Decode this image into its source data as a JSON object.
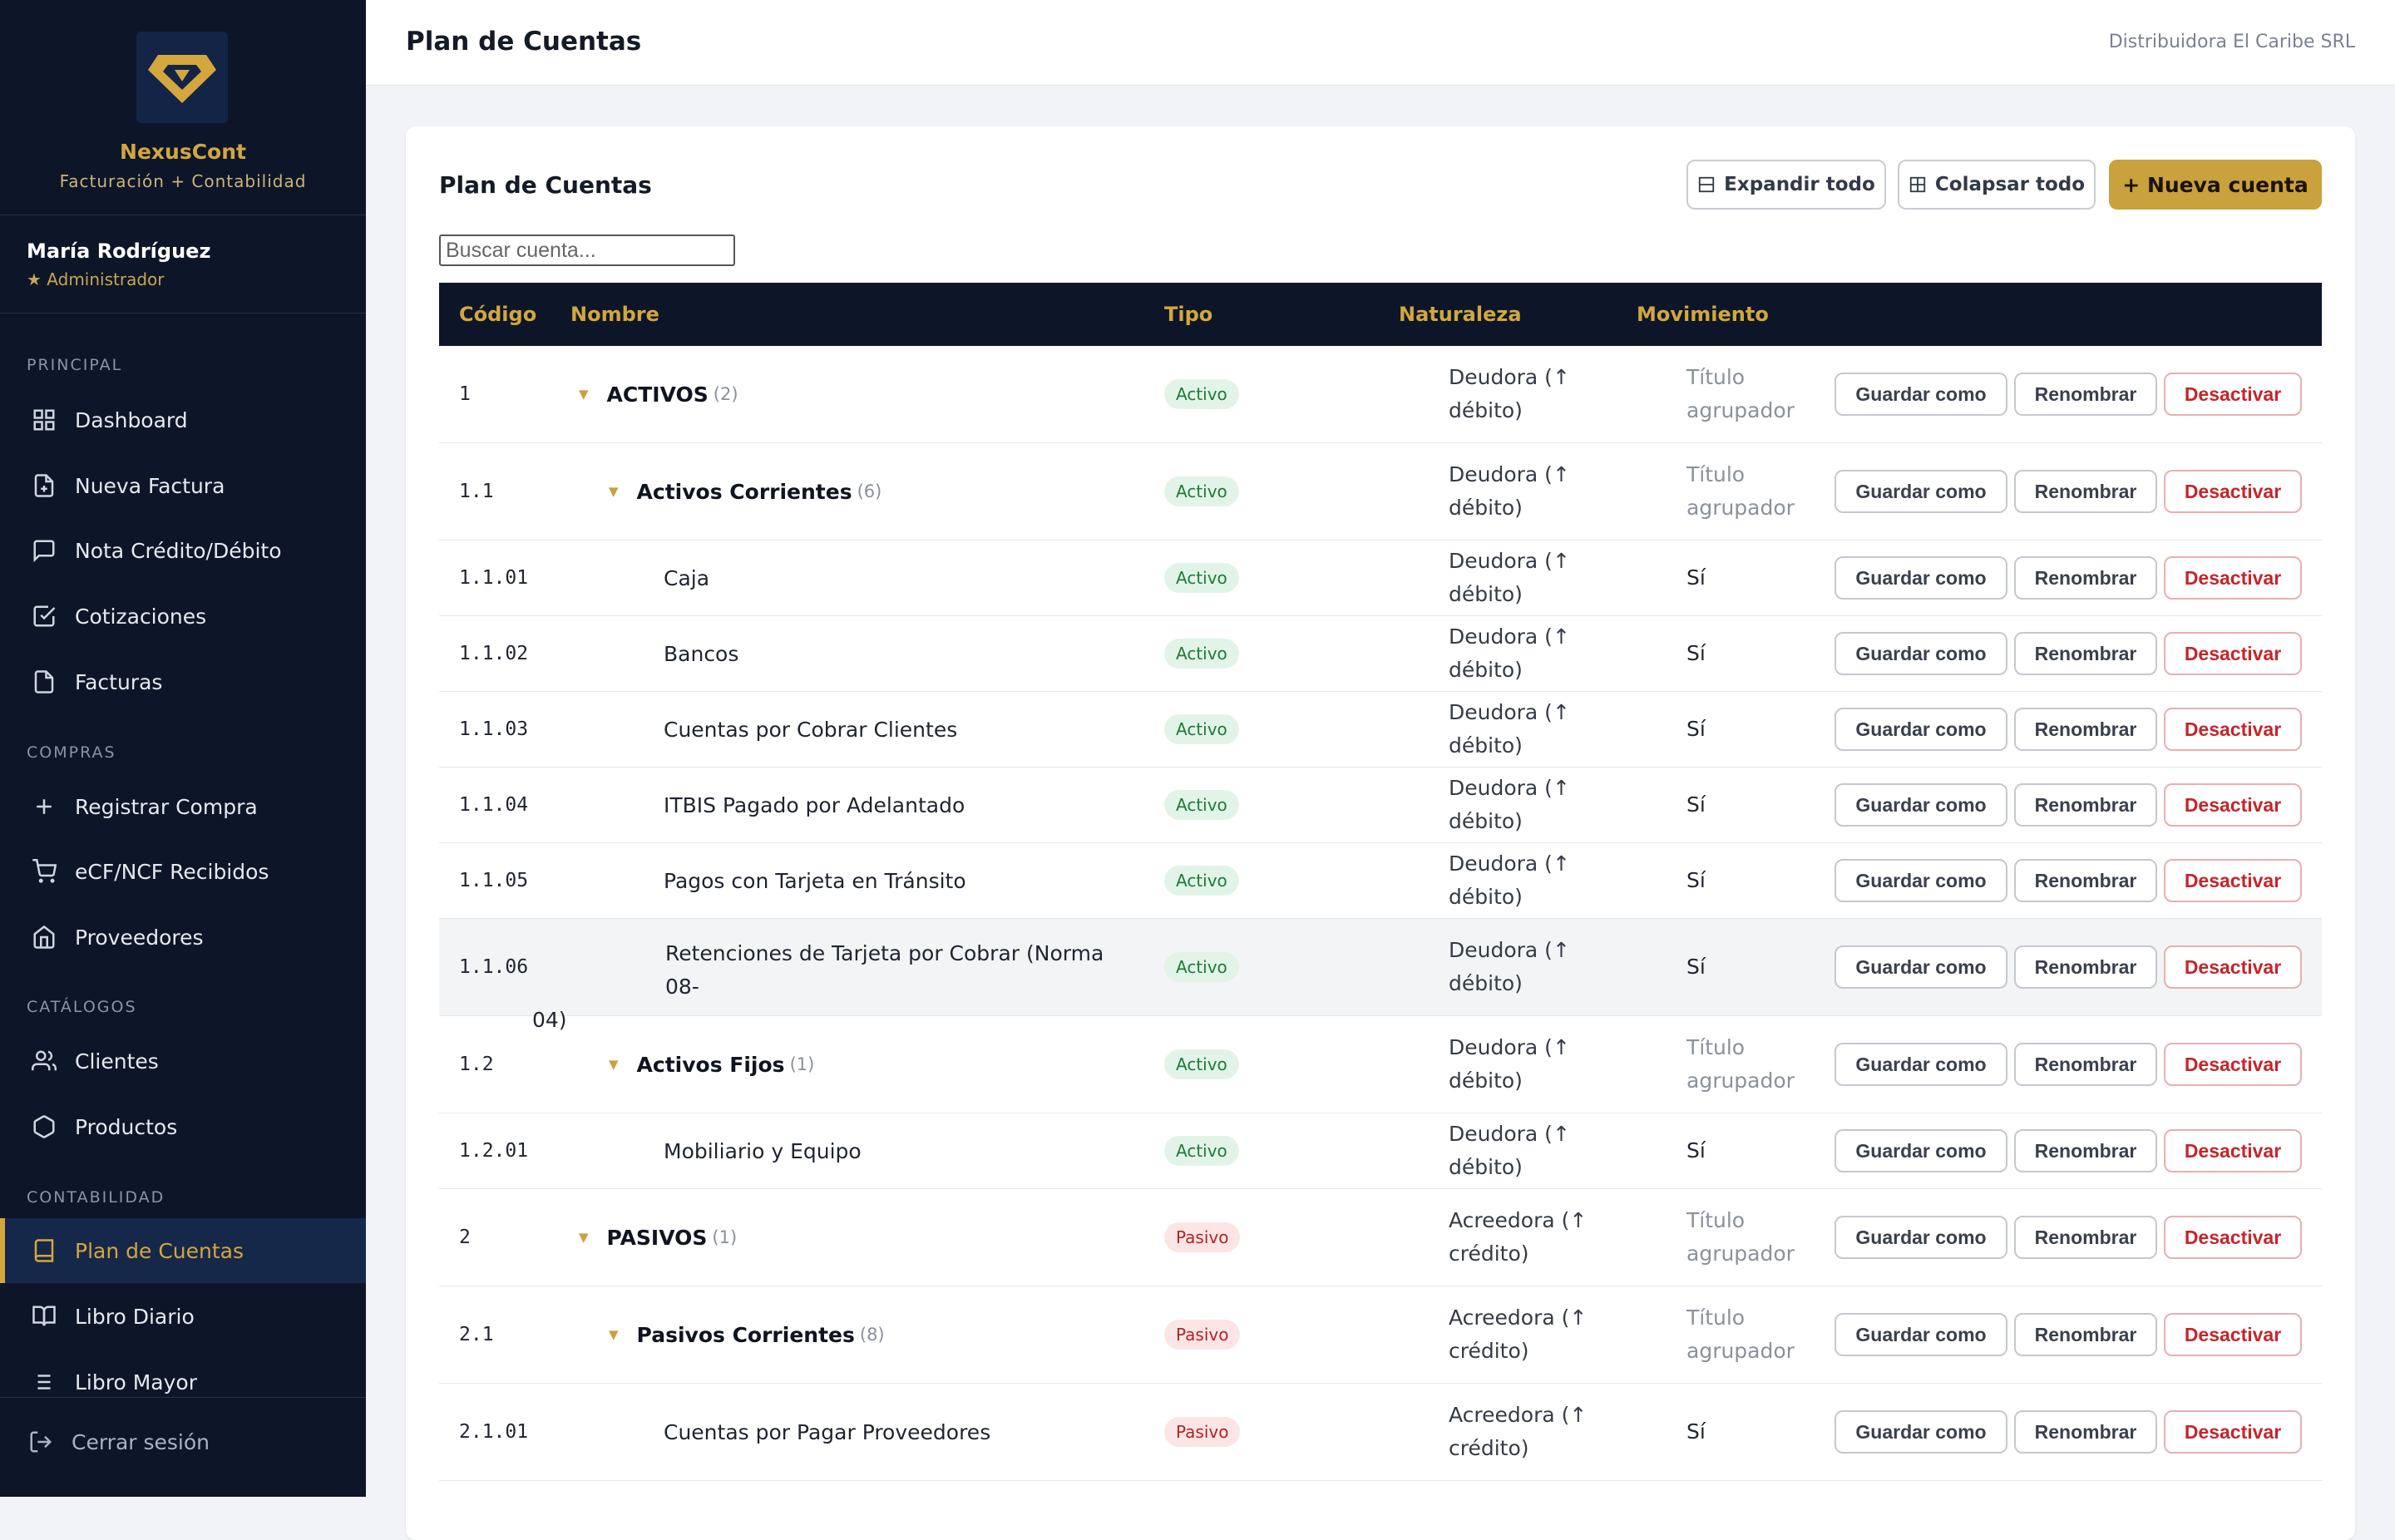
{
  "brand": {
    "name": "NexusCont",
    "subtitle": "Facturación + Contabilidad"
  },
  "user": {
    "name": "María Rodríguez",
    "role": "★ Administrador"
  },
  "sidebar": {
    "sections": {
      "principal": "PRINCIPAL",
      "compras": "COMPRAS",
      "catalogos": "CATÁLOGOS",
      "contabilidad": "CONTABILIDAD"
    },
    "items": [
      {
        "label": "Dashboard",
        "icon": "grid-icon"
      },
      {
        "label": "Nueva Factura",
        "icon": "file-plus-icon"
      },
      {
        "label": "Nota Crédito/Débito",
        "icon": "message-icon"
      },
      {
        "label": "Cotizaciones",
        "icon": "checkbox-icon"
      },
      {
        "label": "Facturas",
        "icon": "file-icon"
      },
      {
        "label": "Registrar Compra",
        "icon": "plus-icon"
      },
      {
        "label": "eCF/NCF Recibidos",
        "icon": "cart-icon"
      },
      {
        "label": "Proveedores",
        "icon": "home-icon"
      },
      {
        "label": "Clientes",
        "icon": "users-icon"
      },
      {
        "label": "Productos",
        "icon": "hexagon-icon"
      },
      {
        "label": "Plan de Cuentas",
        "icon": "book-icon"
      },
      {
        "label": "Libro Diario",
        "icon": "open-book-icon"
      },
      {
        "label": "Libro Mayor",
        "icon": "list-icon"
      }
    ],
    "logout": "Cerrar sesión"
  },
  "header": {
    "title": "Plan de Cuentas",
    "company": "Distribuidora El Caribe SRL"
  },
  "card": {
    "title": "Plan de Cuentas",
    "expand_label": "Expandir todo",
    "collapse_label": "Colapsar todo",
    "new_label": "+ Nueva cuenta",
    "search_placeholder": "Buscar cuenta..."
  },
  "table": {
    "columns": {
      "code": "Código",
      "name": "Nombre",
      "type": "Tipo",
      "nature": "Naturaleza",
      "movement": "Movimiento"
    },
    "actions": {
      "save": "Guardar como",
      "rename": "Renombrar",
      "deactivate": "Desactivar"
    },
    "rows": [
      {
        "code": "1",
        "name": "ACTIVOS",
        "count": "(2)",
        "type": "Activo",
        "nature": "Deudora (↑ débito)",
        "movement": "Título agrupador"
      },
      {
        "code": "1.1",
        "name": "Activos Corrientes",
        "count": "(6)",
        "type": "Activo",
        "nature": "Deudora (↑ débito)",
        "movement": "Título agrupador"
      },
      {
        "code": "1.1.01",
        "name": "Caja",
        "type": "Activo",
        "nature": "Deudora (↑ débito)",
        "movement": "Sí"
      },
      {
        "code": "1.1.02",
        "name": "Bancos",
        "type": "Activo",
        "nature": "Deudora (↑ débito)",
        "movement": "Sí"
      },
      {
        "code": "1.1.03",
        "name": "Cuentas por Cobrar Clientes",
        "type": "Activo",
        "nature": "Deudora (↑ débito)",
        "movement": "Sí"
      },
      {
        "code": "1.1.04",
        "name": "ITBIS Pagado por Adelantado",
        "type": "Activo",
        "nature": "Deudora (↑ débito)",
        "movement": "Sí"
      },
      {
        "code": "1.1.05",
        "name": "Pagos con Tarjeta en Tránsito",
        "type": "Activo",
        "nature": "Deudora (↑ débito)",
        "movement": "Sí"
      },
      {
        "code": "1.1.06",
        "name_line1": "Retenciones de Tarjeta por Cobrar (Norma 08-",
        "name_line2": "04)",
        "type": "Activo",
        "nature": "Deudora (↑ débito)",
        "movement": "Sí"
      },
      {
        "code": "1.2",
        "name": "Activos Fijos",
        "count": "(1)",
        "type": "Activo",
        "nature": "Deudora (↑ débito)",
        "movement": "Título agrupador"
      },
      {
        "code": "1.2.01",
        "name": "Mobiliario y Equipo",
        "type": "Activo",
        "nature": "Deudora (↑ débito)",
        "movement": "Sí"
      },
      {
        "code": "2",
        "name": "PASIVOS",
        "count": "(1)",
        "type": "Pasivo",
        "nature": "Acreedora (↑ crédito)",
        "movement": "Título agrupador"
      },
      {
        "code": "2.1",
        "name": "Pasivos Corrientes",
        "count": "(8)",
        "type": "Pasivo",
        "nature": "Acreedora (↑ crédito)",
        "movement": "Título agrupador"
      },
      {
        "code": "2.1.01",
        "name": "Cuentas por Pagar Proveedores",
        "type": "Pasivo",
        "nature": "Acreedora (↑ crédito)",
        "movement": "Sí"
      }
    ]
  },
  "colors": {
    "sidebar_bg": "#0d1628",
    "accent": "#d4a63c",
    "activo_bg": "#e2f4e7",
    "pasivo_bg": "#fde5e5",
    "danger": "#c4262b"
  }
}
